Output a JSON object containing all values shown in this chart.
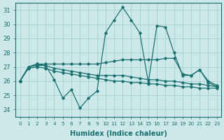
{
  "background_color": "#cde8e8",
  "grid_color": "#aacfcf",
  "line_color": "#1a7070",
  "xlabel": "Humidex (Indice chaleur)",
  "xlim": [
    -0.5,
    23.5
  ],
  "ylim": [
    23.5,
    31.5
  ],
  "yticks": [
    24,
    25,
    26,
    27,
    28,
    29,
    30,
    31
  ],
  "xticks": [
    0,
    1,
    2,
    3,
    4,
    5,
    6,
    7,
    8,
    9,
    10,
    11,
    12,
    13,
    14,
    15,
    16,
    17,
    18,
    19,
    20,
    21,
    22,
    23
  ],
  "line1_x": [
    0,
    1,
    2,
    3,
    4,
    5,
    6,
    7,
    8,
    9,
    10,
    11,
    12,
    13,
    14,
    15,
    16,
    17,
    18,
    19,
    20,
    21,
    22,
    23
  ],
  "line1_y": [
    26.0,
    27.0,
    27.2,
    27.1,
    26.1,
    24.8,
    25.4,
    24.1,
    24.8,
    25.3,
    29.4,
    30.3,
    31.2,
    30.3,
    29.4,
    25.9,
    29.9,
    29.8,
    28.0,
    26.4,
    26.4,
    26.8,
    25.9,
    25.6
  ],
  "line2_x": [
    0,
    1,
    2,
    3,
    4,
    5,
    6,
    7,
    8,
    9,
    10,
    11,
    12,
    13,
    14,
    15,
    16,
    17,
    18,
    19,
    20,
    21,
    22,
    23
  ],
  "line2_y": [
    26.0,
    27.0,
    27.2,
    27.2,
    27.2,
    27.2,
    27.2,
    27.2,
    27.2,
    27.2,
    27.3,
    27.4,
    27.5,
    27.5,
    27.5,
    27.5,
    27.5,
    27.6,
    27.6,
    26.5,
    26.4,
    26.8,
    26.0,
    25.7
  ],
  "line3_x": [
    0,
    1,
    2,
    3,
    4,
    5,
    6,
    7,
    8,
    9,
    10,
    11,
    12,
    13,
    14,
    15,
    16,
    17,
    18,
    19,
    20,
    21,
    22,
    23
  ],
  "line3_y": [
    26.0,
    27.0,
    27.1,
    27.1,
    26.9,
    26.8,
    26.7,
    26.6,
    26.5,
    26.4,
    26.4,
    26.4,
    26.4,
    26.3,
    26.2,
    26.1,
    26.1,
    26.0,
    26.0,
    25.9,
    25.8,
    25.8,
    25.7,
    25.6
  ],
  "line4_x": [
    0,
    1,
    2,
    3,
    4,
    5,
    6,
    7,
    8,
    9,
    10,
    11,
    12,
    13,
    14,
    15,
    16,
    17,
    18,
    19,
    20,
    21,
    22,
    23
  ],
  "line4_y": [
    26.0,
    26.9,
    27.0,
    26.9,
    26.7,
    26.6,
    26.5,
    26.4,
    26.3,
    26.2,
    26.1,
    26.0,
    26.0,
    25.9,
    25.9,
    25.8,
    25.8,
    25.7,
    25.7,
    25.6,
    25.6,
    25.5,
    25.5,
    25.5
  ]
}
